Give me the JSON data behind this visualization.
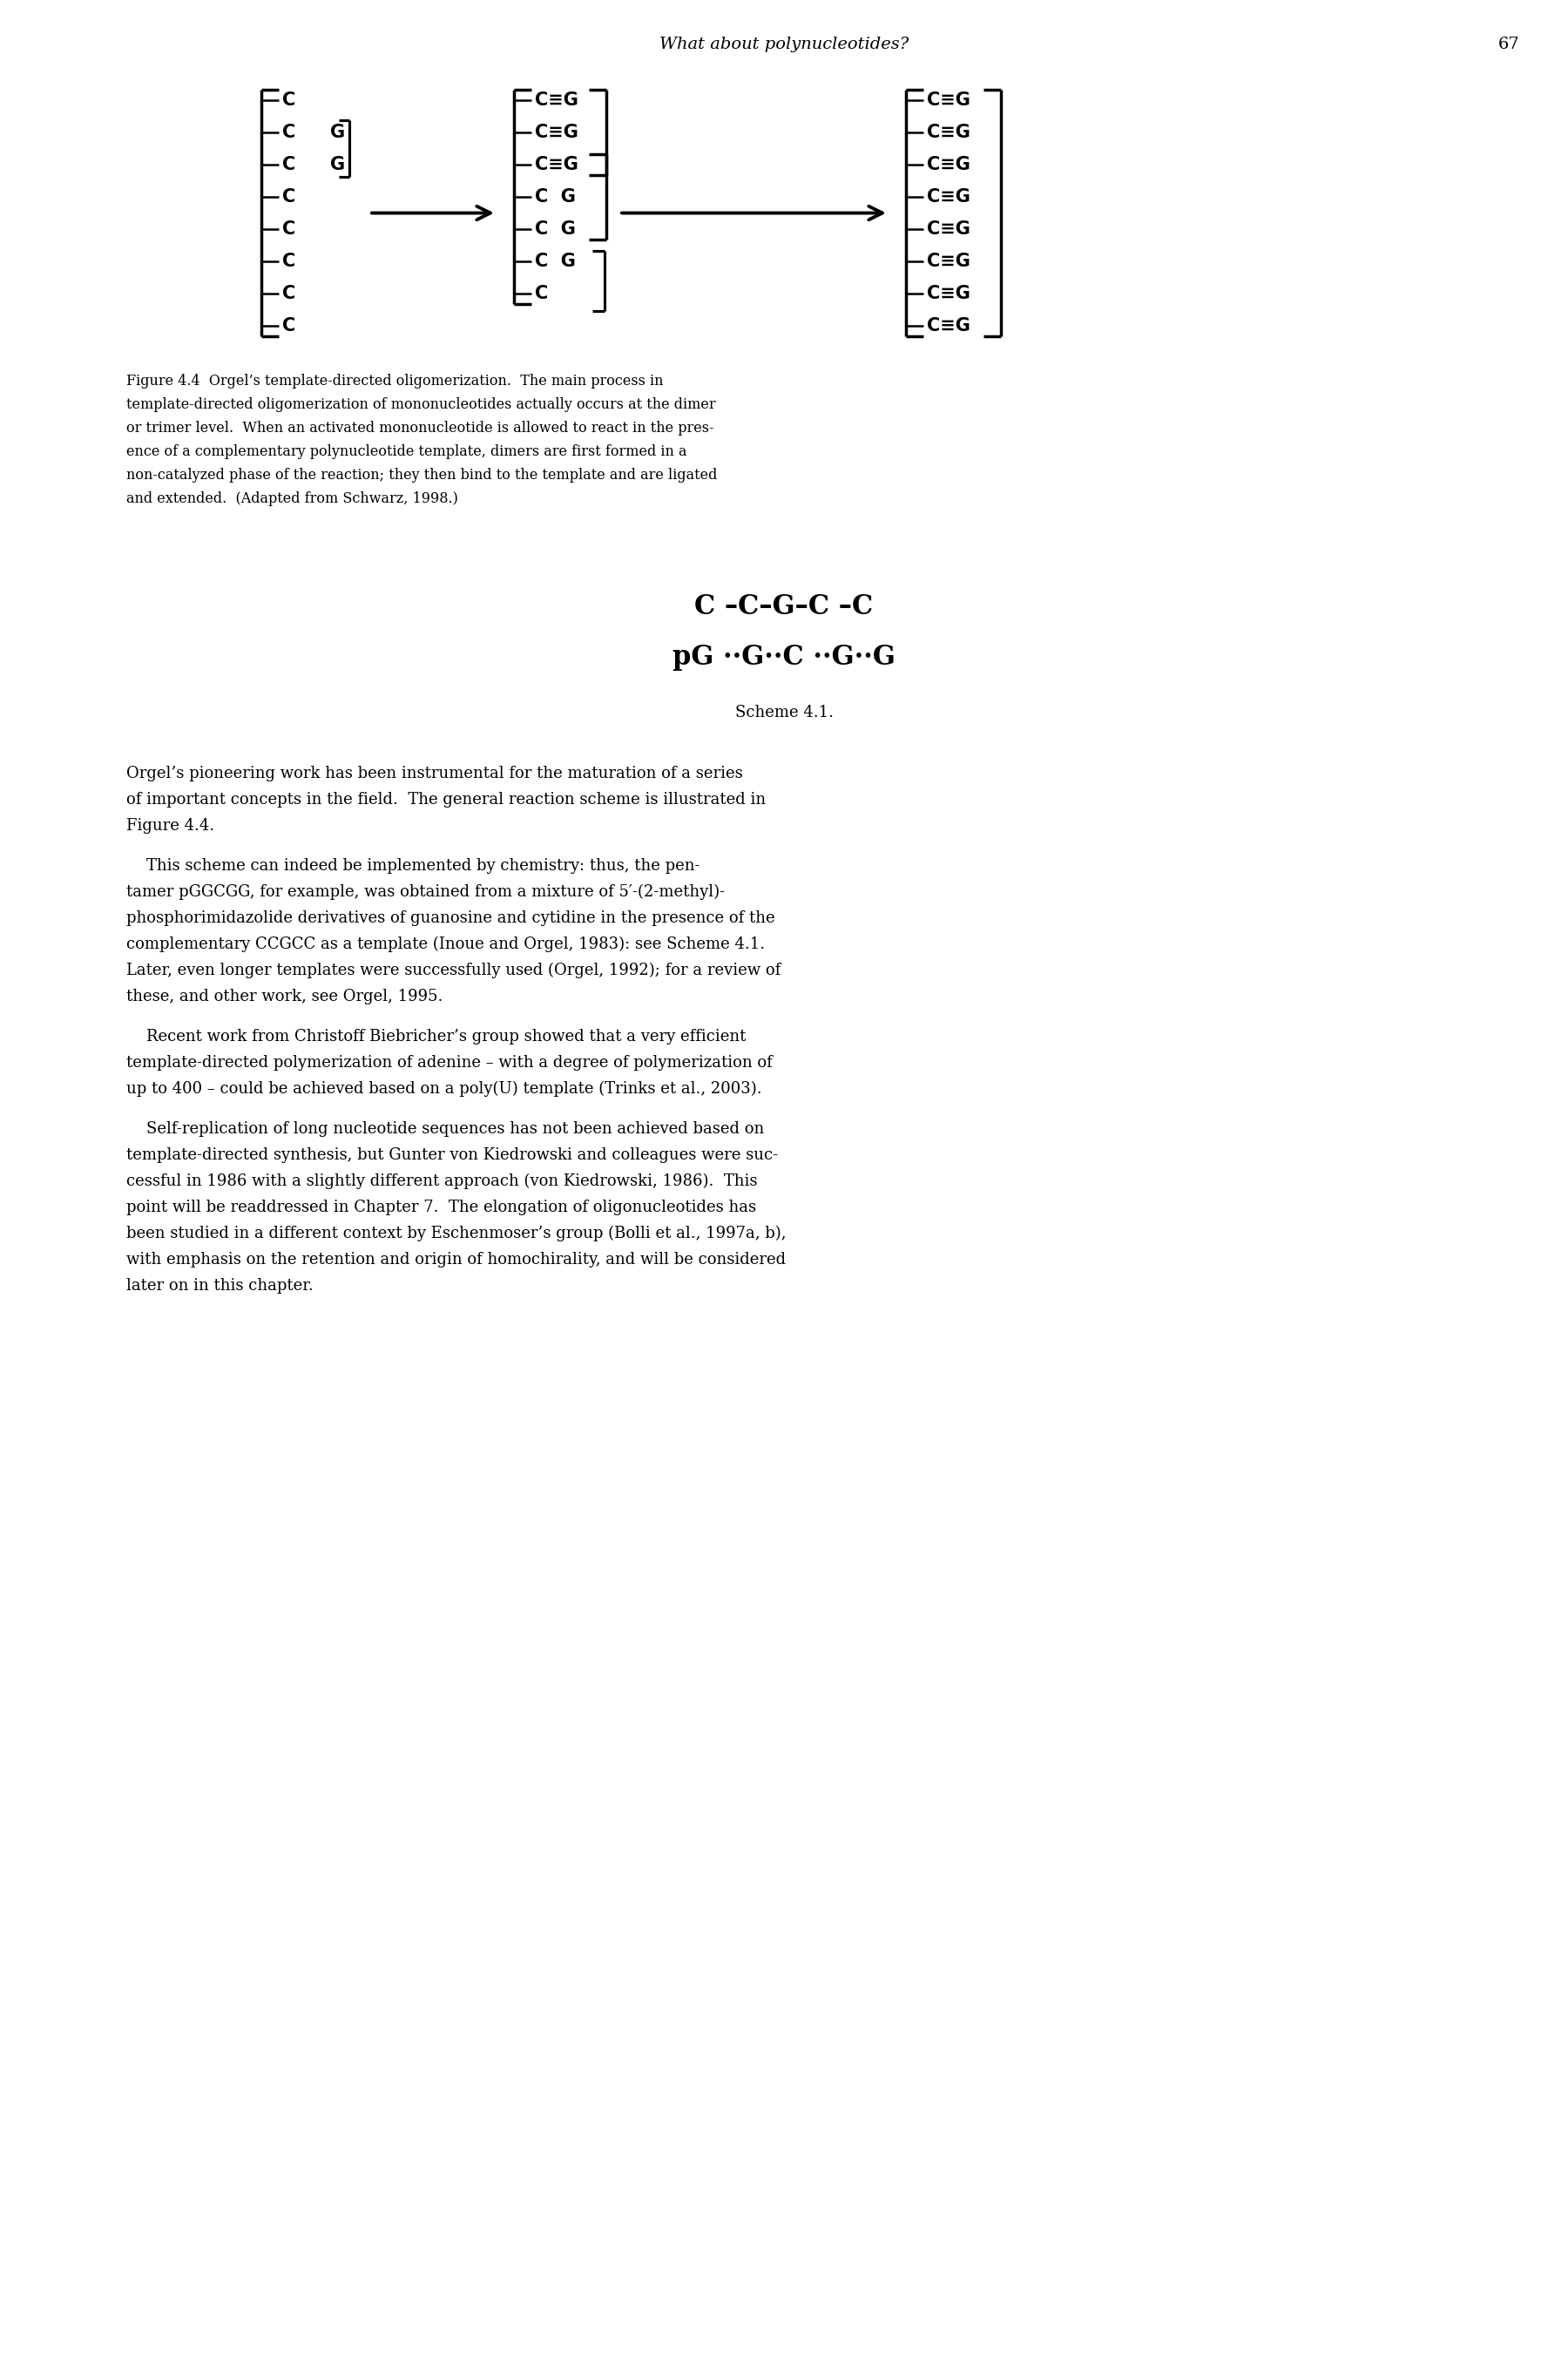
{
  "bg": "#ffffff",
  "header_title": "What about polynucleotides?",
  "page_num": "67",
  "cap_lines": [
    "Figure 4.4  Orgel’s template-directed oligomerization.  The main process in",
    "template-directed oligomerization of mononucleotides actually occurs at the dimer",
    "or trimer level.  When an activated mononucleotide is allowed to react in the pres-",
    "ence of a complementary polynucleotide template, dimers are first formed in a",
    "non-catalyzed phase of the reaction; they then bind to the template and are ligated",
    "and extended.  (Adapted from Schwarz, 1998.)"
  ],
  "scheme_line1": "C –C–G–C –C",
  "scheme_line2": "pG ··G··C ··G··G",
  "scheme_label": "Scheme 4.1.",
  "para1_lines": [
    "Orgel’s pioneering work has been instrumental for the maturation of a series",
    "of important concepts in the field.  The general reaction scheme is illustrated in",
    "Figure 4.4."
  ],
  "para2_lines": [
    "    This scheme can indeed be implemented by chemistry: thus, the pen-",
    "tamer pGGCGG, for example, was obtained from a mixture of 5′-(2-methyl)-",
    "phosphorimidazolide derivatives of guanosine and cytidine in the presence of the",
    "complementary CCGCC as a template (Inoue and Orgel, 1983): see Scheme 4.1.",
    "Later, even longer templates were successfully used (Orgel, 1992); for a review of",
    "these, and other work, see Orgel, 1995."
  ],
  "para3_lines": [
    "    Recent work from Christoff Biebricher’s group showed that a very efficient",
    "template-directed polymerization of adenine – with a degree of polymerization of",
    "up to 400 – could be achieved based on a poly(U) template (Trinks et al., 2003)."
  ],
  "para4_lines": [
    "    Self-replication of long nucleotide sequences has not been achieved based on",
    "template-directed synthesis, but Gunter von Kiedrowski and colleagues were suc-",
    "cessful in 1986 with a slightly different approach (von Kiedrowski, 1986).  This",
    "point will be readdressed in Chapter 7.  The elongation of oligonucleotides has",
    "been studied in a different context by Eschenmoser’s group (Bolli et al., 1997a, b),",
    "with emphasis on the retention and origin of homochirality, and will be considered",
    "later on in this chapter."
  ]
}
